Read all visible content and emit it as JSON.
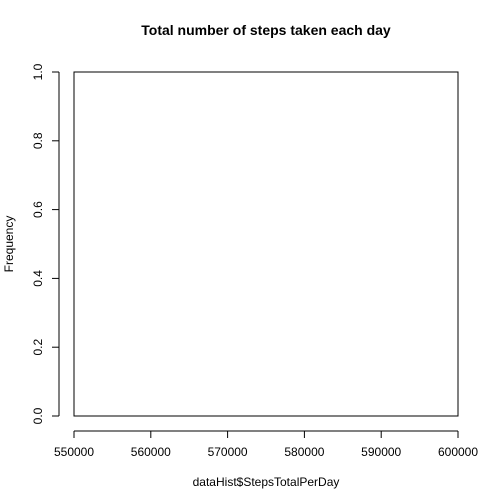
{
  "chart_data": {
    "type": "bar",
    "title": "Total number of steps taken each day",
    "xlabel": "dataHist$StepsTotalPerDay",
    "ylabel": "Frequency",
    "x_ticks": [
      "550000",
      "560000",
      "570000",
      "580000",
      "590000",
      "600000"
    ],
    "y_ticks": [
      "0.0",
      "0.2",
      "0.4",
      "0.6",
      "0.8",
      "1.0"
    ],
    "xlim": [
      550000,
      600000
    ],
    "ylim": [
      0,
      1
    ],
    "categories": [],
    "values": [],
    "grid": false
  }
}
